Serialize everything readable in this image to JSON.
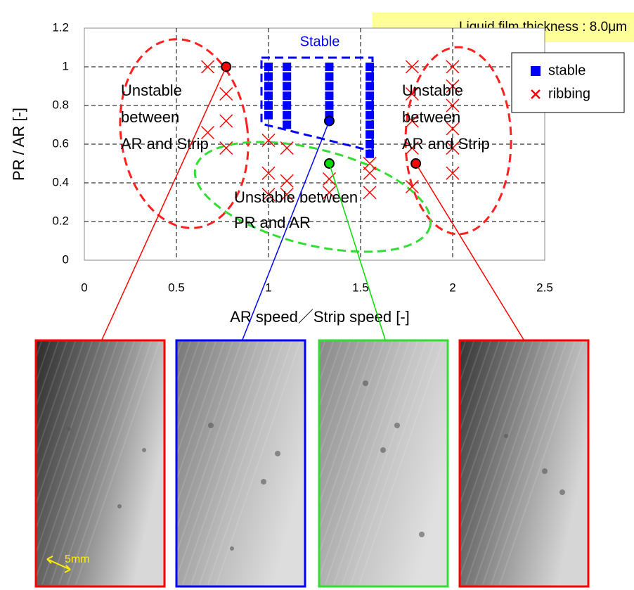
{
  "chart_data": {
    "type": "scatter",
    "title": "Liquid film thickness : 8.0μm",
    "x_label": "AR speed／Strip speed   [-]",
    "y_label": "PR / AR  [-]",
    "xlim": [
      0,
      2.5
    ],
    "xticks": [
      0,
      0.5,
      1,
      1.5,
      2,
      2.5
    ],
    "ylim": [
      0,
      1.2
    ],
    "yticks": [
      0,
      0.2,
      0.4,
      0.6,
      0.8,
      1,
      1.2
    ],
    "grid": true,
    "legend_position": "upper right",
    "series": [
      {
        "name": "stable",
        "color": "#0000ff",
        "marker": "square",
        "x": [
          1.0,
          1.0,
          1.0,
          1.0,
          1.0,
          1.0,
          1.1,
          1.1,
          1.1,
          1.1,
          1.1,
          1.1,
          1.1,
          1.33,
          1.33,
          1.33,
          1.33,
          1.33,
          1.33,
          1.55,
          1.55,
          1.55,
          1.55,
          1.55,
          1.55,
          1.55,
          1.55,
          1.55,
          1.55
        ],
        "y": [
          1.0,
          0.95,
          0.9,
          0.85,
          0.8,
          0.75,
          1.0,
          0.95,
          0.9,
          0.85,
          0.8,
          0.75,
          0.7,
          1.0,
          0.95,
          0.9,
          0.85,
          0.8,
          0.75,
          1.0,
          0.95,
          0.9,
          0.85,
          0.8,
          0.75,
          0.7,
          0.65,
          0.6,
          0.55
        ]
      },
      {
        "name": "ribbing",
        "color": "#ff0000",
        "marker": "x",
        "x": [
          0.67,
          0.77,
          0.77,
          0.67,
          0.77,
          1.0,
          1.1,
          1.0,
          1.1,
          1.0,
          1.1,
          1.33,
          1.33,
          1.55,
          1.55,
          1.55,
          1.78,
          1.78,
          1.78,
          1.78,
          1.78,
          2.0,
          2.0,
          2.0,
          2.0,
          2.0,
          2.0
        ],
        "y": [
          1.0,
          0.86,
          0.72,
          0.66,
          0.58,
          0.62,
          0.58,
          0.45,
          0.41,
          0.34,
          0.34,
          0.42,
          0.35,
          0.5,
          0.45,
          0.35,
          1.0,
          0.86,
          0.72,
          0.58,
          0.38,
          1.0,
          0.9,
          0.8,
          0.68,
          0.58,
          0.45
        ]
      }
    ],
    "highlighted_points": {
      "x": [
        0.77,
        1.33,
        1.33,
        1.8
      ],
      "y": [
        1.0,
        0.72,
        0.5,
        0.5
      ],
      "colors": [
        "#ff0000",
        "#0000ff",
        "#00dd00",
        "#ff0000"
      ]
    },
    "annotations": {
      "stable": "Stable",
      "left": [
        "Unstable",
        "between",
        "AR and Strip"
      ],
      "right": [
        "Unstable",
        "between",
        "AR and Strip"
      ],
      "center": [
        "Unstable between",
        "PR and AR"
      ]
    },
    "photo_scale_label": "5mm"
  }
}
